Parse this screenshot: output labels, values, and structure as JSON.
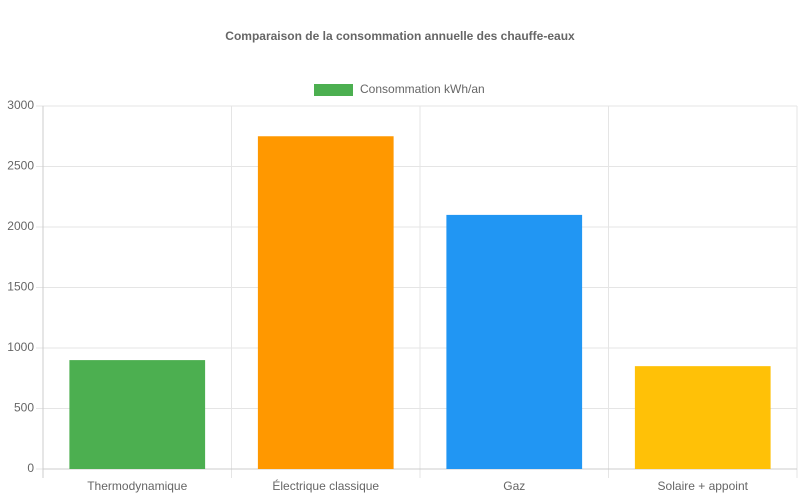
{
  "chart_data": {
    "type": "bar",
    "title": "Comparaison de la consommation annuelle des chauffe-eaux",
    "categories": [
      "Thermodynamique",
      "Électrique classique",
      "Gaz",
      "Solaire + appoint"
    ],
    "series": [
      {
        "name": "Consommation kWh/an",
        "colors": [
          "#4caf50",
          "#ff9800",
          "#2196f3",
          "#ffc107"
        ],
        "values": [
          900,
          2750,
          2100,
          850
        ]
      }
    ],
    "ylim": [
      0,
      3000
    ],
    "yticks": [
      0,
      500,
      1000,
      1500,
      2000,
      2500,
      3000
    ],
    "grid": true,
    "legend": "top"
  }
}
